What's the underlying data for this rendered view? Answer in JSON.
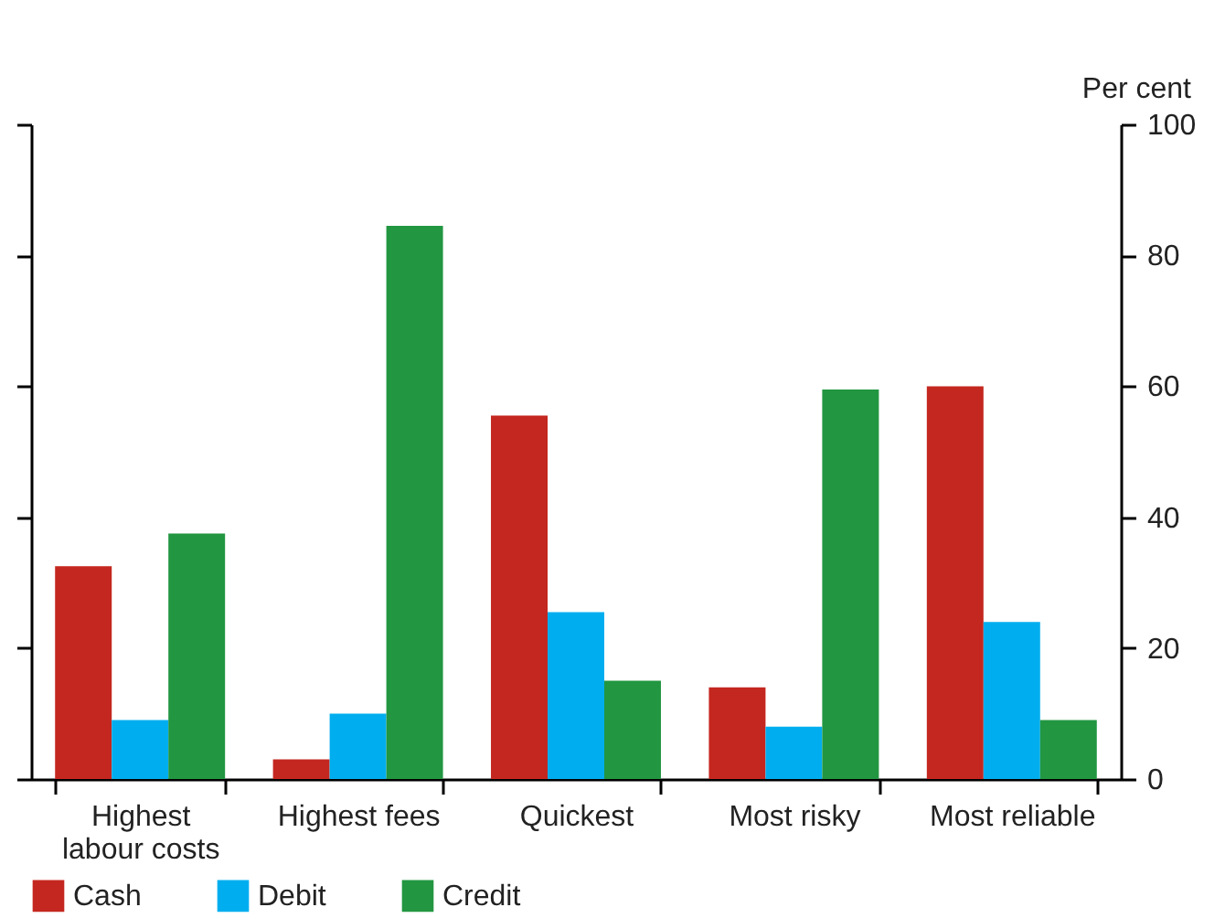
{
  "chart_data": {
    "type": "bar",
    "ylabel": "Per cent",
    "categories": [
      "Highest labour costs",
      "Highest fees",
      "Quickest",
      "Most risky",
      "Most reliable"
    ],
    "series": [
      {
        "name": "Cash",
        "color": "#c4271f",
        "values": [
          32.5,
          3,
          55.5,
          14,
          60
        ]
      },
      {
        "name": "Debit",
        "color": "#00aeef",
        "values": [
          9,
          10,
          25.5,
          8,
          24
        ]
      },
      {
        "name": "Credit",
        "color": "#229641",
        "values": [
          37.5,
          84.5,
          15,
          59.5,
          9
        ]
      }
    ],
    "ylim": [
      0,
      100
    ],
    "yticks": [
      0,
      20,
      40,
      60,
      80,
      100
    ],
    "grid": false,
    "legend": "bottom left"
  }
}
